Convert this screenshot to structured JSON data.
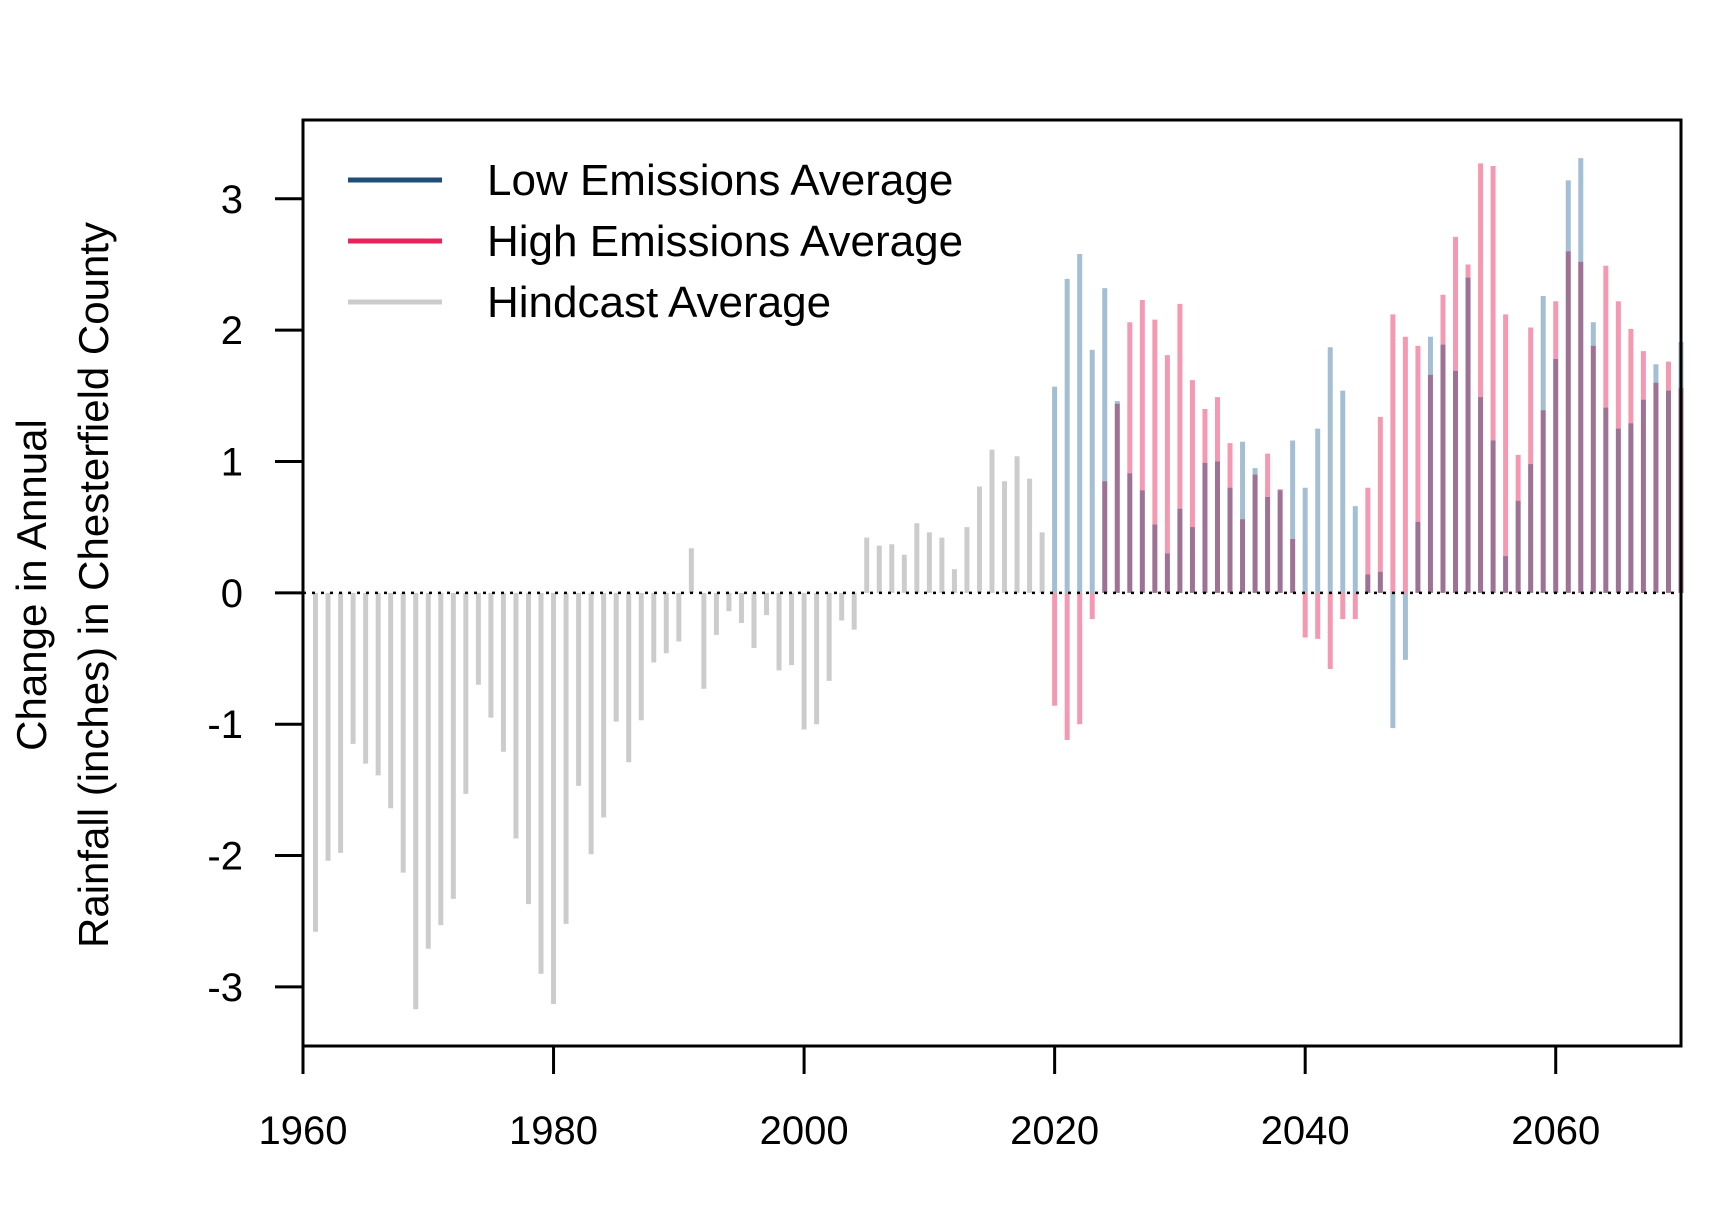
{
  "chart_data": {
    "type": "bar",
    "ylabel_line1": "Change in Annual",
    "ylabel_line2": "Rainfall (inches) in Chesterfield County",
    "xlabel": "",
    "xlim": [
      1960,
      2070
    ],
    "ylim": [
      -3.45,
      3.6
    ],
    "xticks": [
      1960,
      1980,
      2000,
      2020,
      2040,
      2060
    ],
    "yticks": [
      -3,
      -2,
      -1,
      0,
      1,
      2,
      3
    ],
    "grid": false,
    "baseline": 0,
    "legend_position": "top-left",
    "legend": [
      {
        "label": "Low Emissions Average",
        "color": "#1f4e79"
      },
      {
        "label": "High Emissions Average",
        "color": "#e8245a"
      },
      {
        "label": "Hindcast Average",
        "color": "#cccccc"
      }
    ],
    "series": [
      {
        "name": "Hindcast Average",
        "color": "#cccccc",
        "x": [
          1961,
          1962,
          1963,
          1964,
          1965,
          1966,
          1967,
          1968,
          1969,
          1970,
          1971,
          1972,
          1973,
          1974,
          1975,
          1976,
          1977,
          1978,
          1979,
          1980,
          1981,
          1982,
          1983,
          1984,
          1985,
          1986,
          1987,
          1988,
          1989,
          1990,
          1991,
          1992,
          1993,
          1994,
          1995,
          1996,
          1997,
          1998,
          1999,
          2000,
          2001,
          2002,
          2003,
          2004,
          2005,
          2006,
          2007,
          2008,
          2009,
          2010,
          2011,
          2012,
          2013,
          2014,
          2015,
          2016,
          2017,
          2018,
          2019
        ],
        "values": [
          -2.58,
          -2.04,
          -1.98,
          -1.15,
          -1.3,
          -1.39,
          -1.64,
          -2.13,
          -3.17,
          -2.71,
          -2.53,
          -2.33,
          -1.53,
          -0.7,
          -0.95,
          -1.21,
          -1.87,
          -2.37,
          -2.9,
          -3.13,
          -2.52,
          -1.47,
          -1.99,
          -1.71,
          -0.98,
          -1.29,
          -0.97,
          -0.53,
          -0.46,
          -0.37,
          0.34,
          -0.73,
          -0.32,
          -0.14,
          -0.23,
          -0.42,
          -0.17,
          -0.59,
          -0.55,
          -1.04,
          -1.0,
          -0.67,
          -0.21,
          -0.28,
          0.42,
          0.36,
          0.37,
          0.29,
          0.53,
          0.46,
          0.42,
          0.18,
          0.5,
          0.81,
          1.09,
          0.85,
          1.04,
          0.87,
          0.46
        ]
      },
      {
        "name": "High Emissions Average",
        "color": "#f48fab",
        "x": [
          2020,
          2021,
          2022,
          2023,
          2024,
          2025,
          2026,
          2027,
          2028,
          2029,
          2030,
          2031,
          2032,
          2033,
          2034,
          2035,
          2036,
          2037,
          2038,
          2039,
          2040,
          2041,
          2042,
          2043,
          2044,
          2045,
          2046,
          2047,
          2048,
          2049,
          2050,
          2051,
          2052,
          2053,
          2054,
          2055,
          2056,
          2057,
          2058,
          2059,
          2060,
          2061,
          2062,
          2063,
          2064,
          2065,
          2066,
          2067,
          2068,
          2069,
          2070
        ],
        "values": [
          -0.86,
          -1.12,
          -1.0,
          -0.2,
          0.85,
          1.44,
          2.06,
          2.23,
          2.08,
          1.81,
          2.2,
          1.62,
          1.4,
          1.49,
          1.14,
          0.56,
          0.9,
          1.06,
          0.79,
          0.41,
          -0.34,
          -0.35,
          -0.58,
          -0.2,
          -0.2,
          0.8,
          1.34,
          2.12,
          1.95,
          1.88,
          1.66,
          2.27,
          2.71,
          2.5,
          3.27,
          3.25,
          2.12,
          1.05,
          2.02,
          1.39,
          2.22,
          2.6,
          2.52,
          1.88,
          2.49,
          2.22,
          2.01,
          1.84,
          1.6,
          1.76,
          1.56
        ]
      },
      {
        "name": "Low Emissions Average",
        "color": "#9ab7ce",
        "x": [
          2020,
          2021,
          2022,
          2023,
          2024,
          2025,
          2026,
          2027,
          2028,
          2029,
          2030,
          2031,
          2032,
          2033,
          2034,
          2035,
          2036,
          2037,
          2038,
          2039,
          2040,
          2041,
          2042,
          2043,
          2044,
          2045,
          2046,
          2047,
          2048,
          2049,
          2050,
          2051,
          2052,
          2053,
          2054,
          2055,
          2056,
          2057,
          2058,
          2059,
          2060,
          2061,
          2062,
          2063,
          2064,
          2065,
          2066,
          2067,
          2068,
          2069,
          2070
        ],
        "values": [
          1.57,
          2.39,
          2.58,
          1.85,
          2.32,
          1.46,
          0.91,
          0.78,
          0.52,
          0.3,
          0.64,
          0.5,
          0.99,
          1.0,
          0.8,
          1.15,
          0.95,
          0.73,
          0.78,
          1.16,
          0.8,
          1.25,
          1.87,
          1.54,
          0.66,
          0.14,
          0.16,
          -1.03,
          -0.51,
          0.54,
          1.95,
          1.89,
          1.69,
          2.4,
          1.49,
          1.16,
          0.28,
          0.7,
          0.98,
          2.26,
          1.78,
          3.14,
          3.31,
          2.06,
          1.41,
          1.25,
          1.29,
          1.47,
          1.74,
          1.54,
          1.91
        ]
      }
    ]
  }
}
